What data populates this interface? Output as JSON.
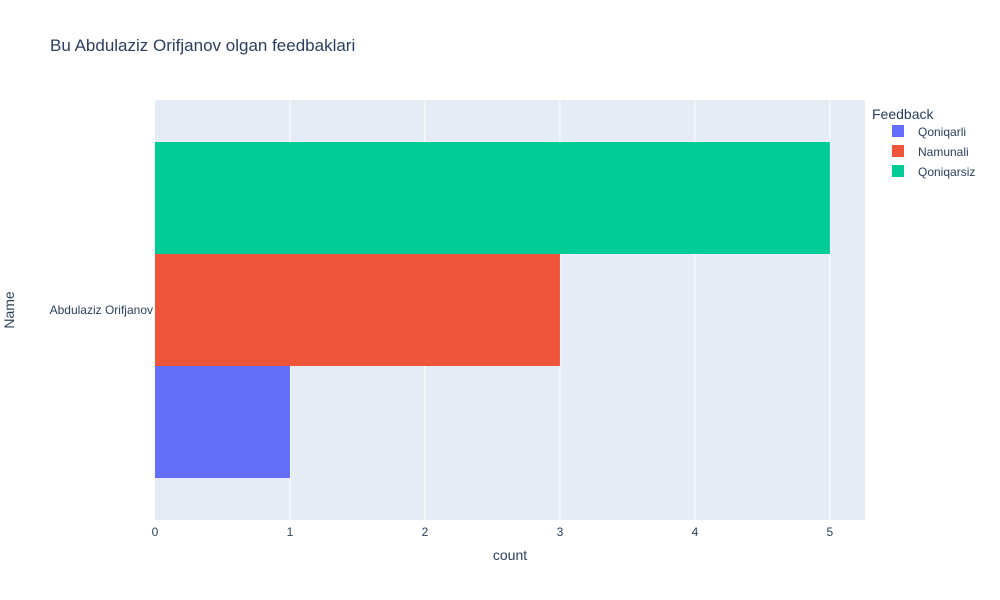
{
  "chart_data": {
    "type": "bar",
    "orientation": "horizontal",
    "barmode": "group",
    "title": "Bu Abdulaziz Orifjanov olgan feedbaklari",
    "xlabel": "count",
    "ylabel": "Name",
    "categories": [
      "Abdulaziz Orifjanov"
    ],
    "xlim": [
      0,
      5.26
    ],
    "xticks": [
      0,
      1,
      2,
      3,
      4,
      5
    ],
    "grid": true,
    "legend": {
      "title": "Feedback",
      "placement": "top-right"
    },
    "series": [
      {
        "name": "Qoniqarli",
        "values": [
          1
        ],
        "color": "#636efa"
      },
      {
        "name": "Namunali",
        "values": [
          3
        ],
        "color": "#ef553b"
      },
      {
        "name": "Qoniqarsiz",
        "values": [
          5
        ],
        "color": "#00cc96"
      }
    ]
  },
  "colors": {
    "plot_bg": "#e5ecf6",
    "grid": "#ffffff",
    "text": "#2a3f5f"
  }
}
